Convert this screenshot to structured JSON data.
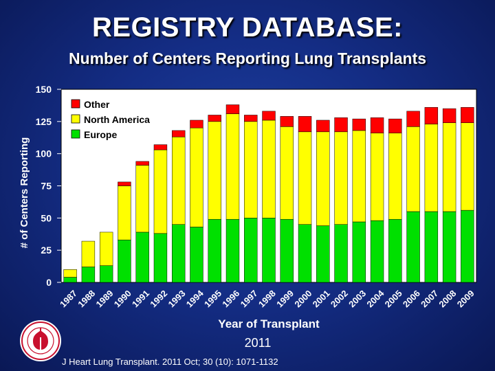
{
  "header": {
    "title": "REGISTRY DATABASE:",
    "subtitle": "Number of Centers Reporting Lung Transplants"
  },
  "footer": {
    "year": "2011",
    "citation": "J Heart Lung Transplant. 2011 Oct; 30 (10): 1071-1132"
  },
  "logo": {
    "icon": "ishlt-seal-icon",
    "color": "#c8102e"
  },
  "chart_data": {
    "type": "bar",
    "stacked": true,
    "categories": [
      "1987",
      "1988",
      "1989",
      "1990",
      "1991",
      "1992",
      "1993",
      "1994",
      "1995",
      "1996",
      "1997",
      "1998",
      "1999",
      "2000",
      "2001",
      "2002",
      "2003",
      "2004",
      "2005",
      "2006",
      "2007",
      "2008",
      "2009"
    ],
    "series": [
      {
        "name": "Europe",
        "color": "#00e000",
        "values": [
          4,
          12,
          13,
          33,
          39,
          38,
          45,
          43,
          49,
          49,
          50,
          50,
          49,
          45,
          44,
          45,
          47,
          48,
          49,
          55,
          55,
          55,
          56
        ]
      },
      {
        "name": "North America",
        "color": "#ffff00",
        "values": [
          6,
          20,
          26,
          42,
          52,
          65,
          68,
          77,
          76,
          82,
          75,
          76,
          72,
          72,
          73,
          72,
          71,
          68,
          67,
          66,
          68,
          69,
          68
        ]
      },
      {
        "name": "Other",
        "color": "#ff0000",
        "values": [
          0,
          0,
          0,
          3,
          3,
          4,
          5,
          6,
          5,
          7,
          5,
          7,
          8,
          12,
          9,
          11,
          9,
          12,
          11,
          12,
          13,
          11,
          12
        ]
      }
    ],
    "legend_order": [
      "Other",
      "North America",
      "Europe"
    ],
    "title": "",
    "xlabel": "Year of Transplant",
    "ylabel": "# of Centers Reporting",
    "ylim": [
      0,
      150
    ],
    "yticks": [
      0,
      25,
      50,
      75,
      100,
      125,
      150
    ],
    "grid": false,
    "legend_position": "top-left",
    "plot_background": "#ffffff"
  }
}
